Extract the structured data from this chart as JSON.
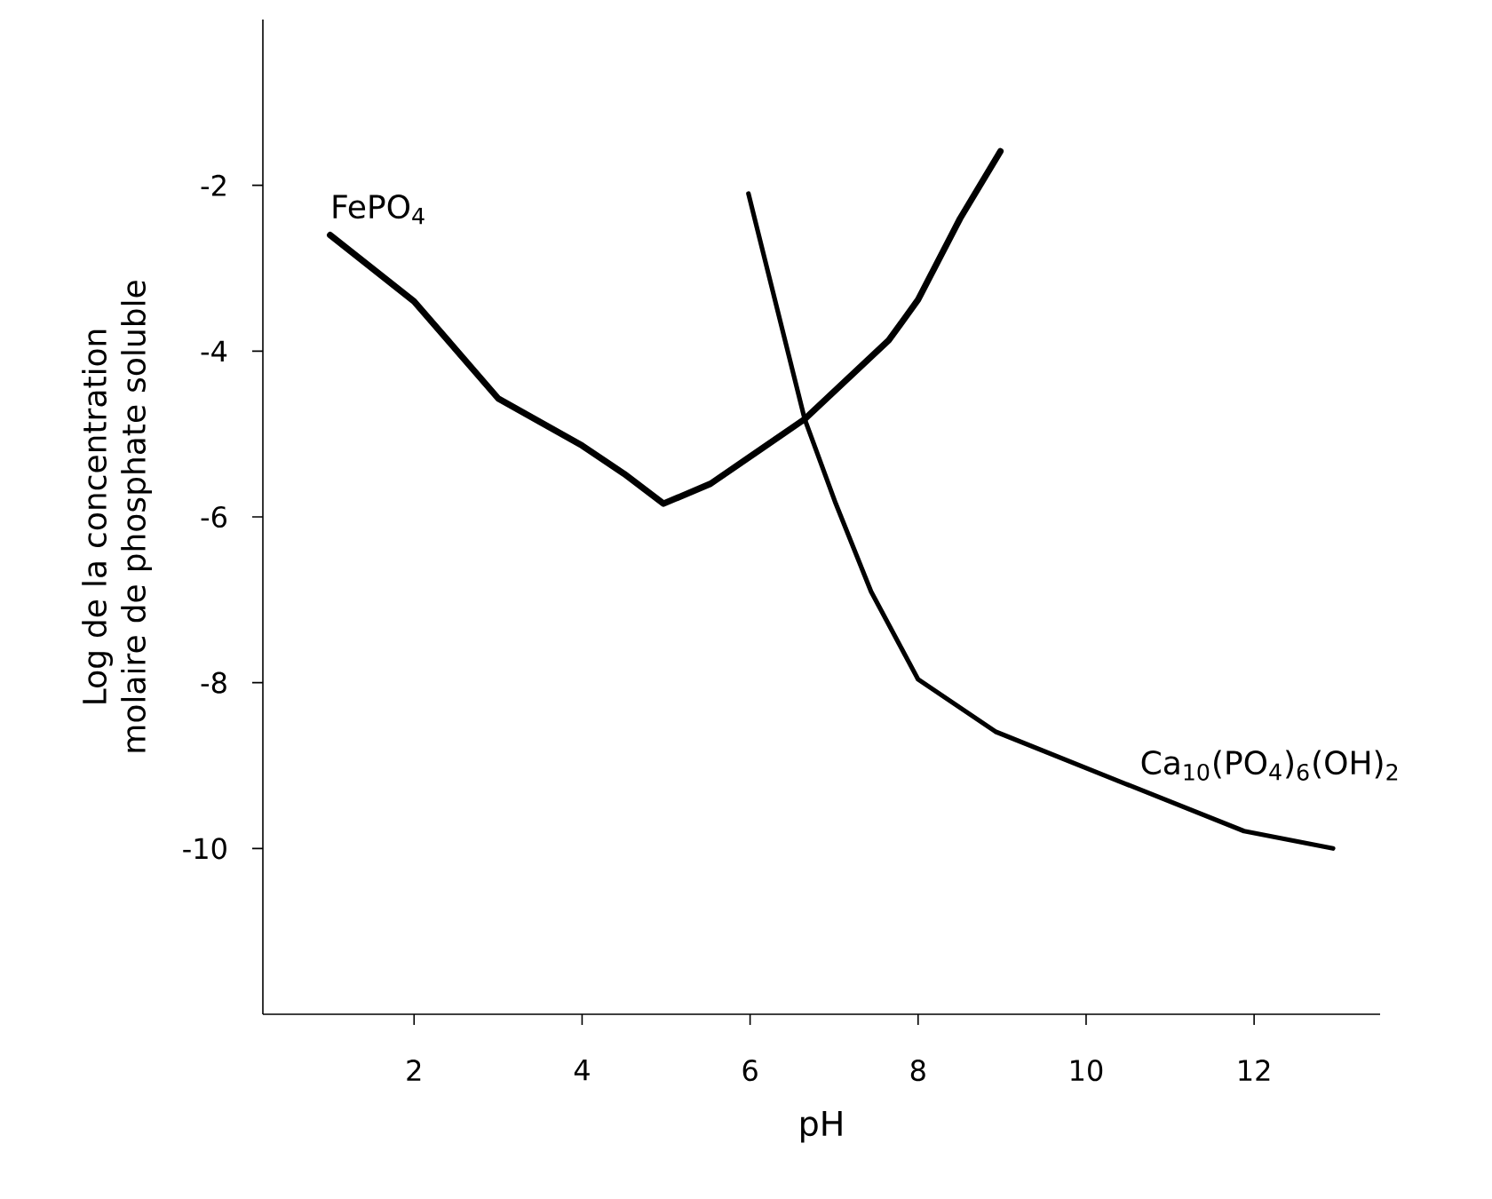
{
  "chart_data": {
    "type": "line",
    "xlabel": "pH",
    "ylabel": "Log de la concentration molaire de phosphate soluble",
    "xlim": [
      0.2,
      13.5
    ],
    "ylim": [
      -12,
      0
    ],
    "xticks": [
      2,
      4,
      6,
      8,
      10,
      12
    ],
    "yticks": [
      -2,
      -4,
      -6,
      -8,
      -10
    ],
    "grid": false,
    "legend": false,
    "marker": "none",
    "line_style": "solid",
    "series": [
      {
        "name": "FePO$_{4}$",
        "color": "#000000",
        "x": [
          1.0,
          2.0,
          3.0,
          4.0,
          4.5,
          4.97,
          5.53,
          6.65,
          7.65,
          8.0,
          8.5,
          8.98
        ],
        "values": [
          -2.6,
          -3.4,
          -4.57,
          -5.14,
          -5.48,
          -5.84,
          -5.6,
          -4.82,
          -3.87,
          -3.38,
          -2.4,
          -1.59
        ]
      },
      {
        "name": "Ca$_{10}$(PO$_{4}$)$_{6}$(OH)$_{2}$",
        "color": "#000000",
        "x": [
          5.98,
          6.65,
          7.02,
          7.44,
          8.0,
          8.92,
          10.47,
          11.88,
          12.94
        ],
        "values": [
          -2.1,
          -4.82,
          -5.84,
          -6.9,
          -7.96,
          -8.59,
          -9.22,
          -9.79,
          -10.0
        ]
      }
    ]
  }
}
